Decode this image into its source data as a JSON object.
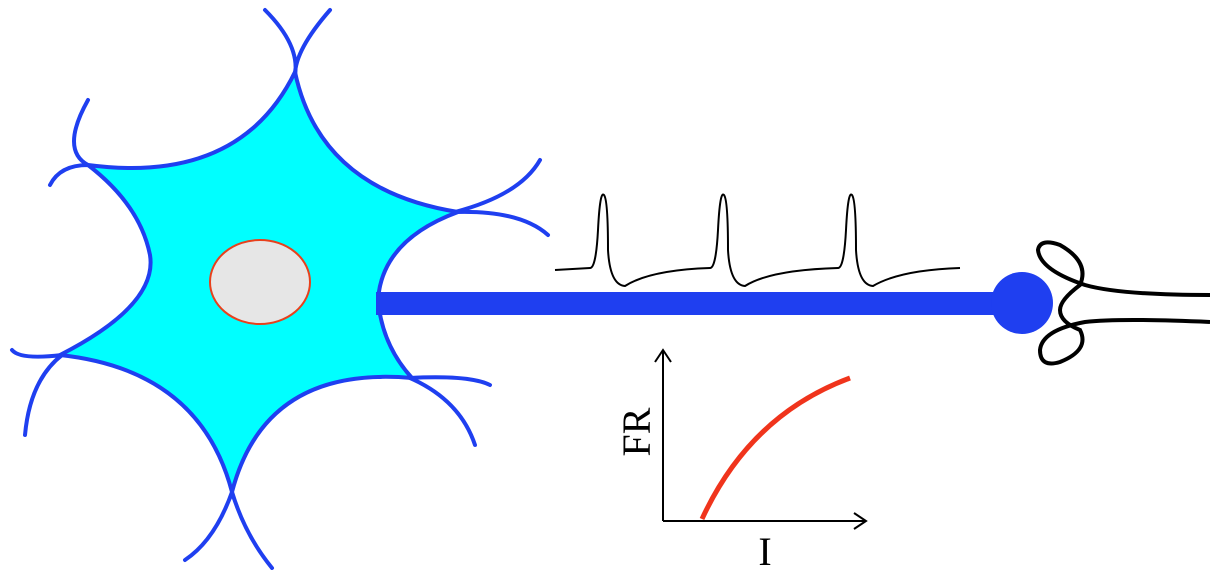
{
  "inset": {
    "y_label": "FR",
    "x_label": "I"
  }
}
